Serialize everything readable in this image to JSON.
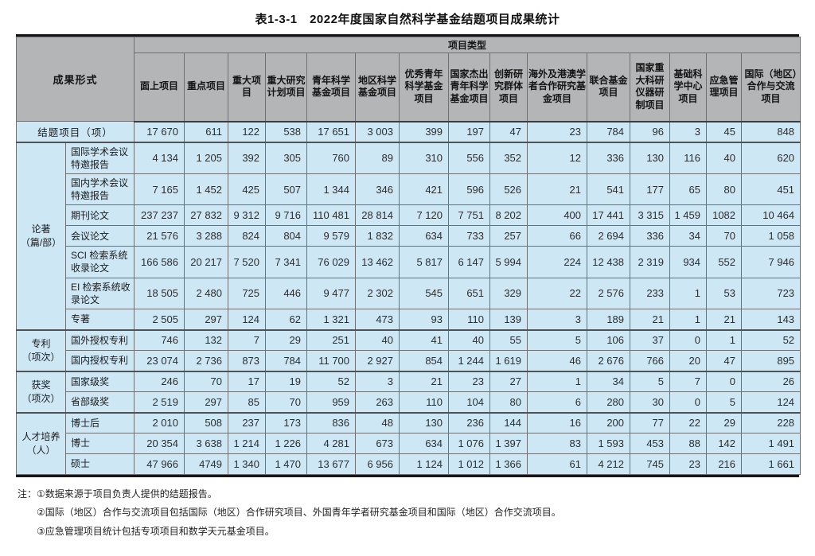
{
  "title": "表1-3-1　2022年度国家自然科学基金结题项目成果统计",
  "table": {
    "corner_label": "成果形式",
    "type_band_label": "项目类型",
    "columns": [
      "面上项目",
      "重点项目",
      "重大项目",
      "重大研究计划项目",
      "青年科学基金项目",
      "地区科学基金项目",
      "优秀青年科学基金项目",
      "国家杰出青年科学基金项目",
      "创新研究群体项目",
      "海外及港澳学者合作研究基金项目",
      "联合基金项目",
      "国家重大科研仪器研制项目",
      "基础科学中心项目",
      "应急管理项目",
      "国际（地区）合作与交流项目"
    ],
    "row_groups": [
      {
        "group_label": "",
        "rows": [
          {
            "label": "结题项目（项）",
            "values": [
              "17 670",
              "611",
              "122",
              "538",
              "17 651",
              "3 003",
              "399",
              "197",
              "47",
              "23",
              "784",
              "96",
              "3",
              "45",
              "848"
            ]
          }
        ]
      },
      {
        "group_label": "论著\n（篇/部）",
        "rows": [
          {
            "label": "国际学术会议特邀报告",
            "values": [
              "4 134",
              "1 205",
              "392",
              "305",
              "760",
              "89",
              "310",
              "556",
              "352",
              "12",
              "336",
              "130",
              "116",
              "40",
              "620"
            ]
          },
          {
            "label": "国内学术会议特邀报告",
            "values": [
              "7 165",
              "1 452",
              "425",
              "507",
              "1 344",
              "346",
              "421",
              "596",
              "526",
              "21",
              "541",
              "177",
              "65",
              "80",
              "451"
            ]
          },
          {
            "label": "期刊论文",
            "values": [
              "237 237",
              "27 832",
              "9 312",
              "9 716",
              "110 481",
              "28 814",
              "7 120",
              "7 751",
              "8 202",
              "400",
              "17 441",
              "3 315",
              "1 459",
              "1082",
              "10 464"
            ]
          },
          {
            "label": "会议论文",
            "values": [
              "21 576",
              "3 288",
              "824",
              "804",
              "9 579",
              "1 832",
              "634",
              "733",
              "257",
              "66",
              "2 694",
              "336",
              "34",
              "70",
              "1 058"
            ]
          },
          {
            "label": "SCI 检索系统收录论文",
            "values": [
              "166 586",
              "20 217",
              "7 520",
              "7 341",
              "76 029",
              "13 462",
              "5 817",
              "6 147",
              "5 994",
              "224",
              "12 438",
              "2 319",
              "934",
              "552",
              "7 946"
            ]
          },
          {
            "label": "EI 检索系统收录论文",
            "values": [
              "18 505",
              "2 480",
              "725",
              "446",
              "9 477",
              "2 302",
              "545",
              "651",
              "329",
              "22",
              "2 576",
              "233",
              "1",
              "53",
              "723"
            ]
          },
          {
            "label": "专著",
            "values": [
              "2 505",
              "297",
              "124",
              "62",
              "1 321",
              "473",
              "93",
              "110",
              "139",
              "3",
              "189",
              "21",
              "1",
              "21",
              "143"
            ]
          }
        ]
      },
      {
        "group_label": "专利\n（项次）",
        "rows": [
          {
            "label": "国外授权专利",
            "values": [
              "746",
              "132",
              "7",
              "29",
              "251",
              "40",
              "41",
              "40",
              "55",
              "5",
              "106",
              "37",
              "0",
              "1",
              "52"
            ]
          },
          {
            "label": "国内授权专利",
            "values": [
              "23 074",
              "2 736",
              "873",
              "784",
              "11 700",
              "2 927",
              "854",
              "1 244",
              "1 619",
              "46",
              "2 676",
              "766",
              "20",
              "47",
              "895"
            ]
          }
        ]
      },
      {
        "group_label": "获奖\n（项次）",
        "rows": [
          {
            "label": "国家级奖",
            "values": [
              "246",
              "70",
              "17",
              "19",
              "52",
              "3",
              "21",
              "23",
              "27",
              "1",
              "34",
              "5",
              "7",
              "0",
              "26"
            ]
          },
          {
            "label": "省部级奖",
            "values": [
              "2 519",
              "297",
              "85",
              "70",
              "959",
              "263",
              "110",
              "104",
              "80",
              "6",
              "280",
              "30",
              "0",
              "5",
              "124"
            ]
          }
        ]
      },
      {
        "group_label": "人才培养\n（人）",
        "rows": [
          {
            "label": "博士后",
            "values": [
              "2 010",
              "508",
              "237",
              "173",
              "836",
              "48",
              "130",
              "236",
              "144",
              "16",
              "200",
              "77",
              "22",
              "29",
              "228"
            ]
          },
          {
            "label": "博士",
            "values": [
              "20 354",
              "3 638",
              "1 214",
              "1 226",
              "4 281",
              "673",
              "634",
              "1 076",
              "1 397",
              "83",
              "1 593",
              "453",
              "88",
              "142",
              "1 491"
            ]
          },
          {
            "label": "硕士",
            "values": [
              "47 966",
              "4749",
              "1 340",
              "1 470",
              "13 677",
              "6 956",
              "1 124",
              "1 012",
              "1 366",
              "61",
              "4 212",
              "745",
              "23",
              "216",
              "1 661"
            ]
          }
        ]
      }
    ]
  },
  "notes": {
    "prefix": "注：",
    "items": [
      "①数据来源于项目负责人提供的结题报告。",
      "②国际（地区）合作与交流项目包括国际（地区）合作研究项目、外国青年学者研究基金项目和国际（地区）合作交流项目。",
      "③应急管理项目统计包括专项项目和数学天元基金项目。"
    ]
  },
  "colors": {
    "header_bg": "#b4b5b7",
    "cell_bg": "#cde7f5",
    "grid_line": "#6f7073",
    "outer_line": "#161616"
  }
}
